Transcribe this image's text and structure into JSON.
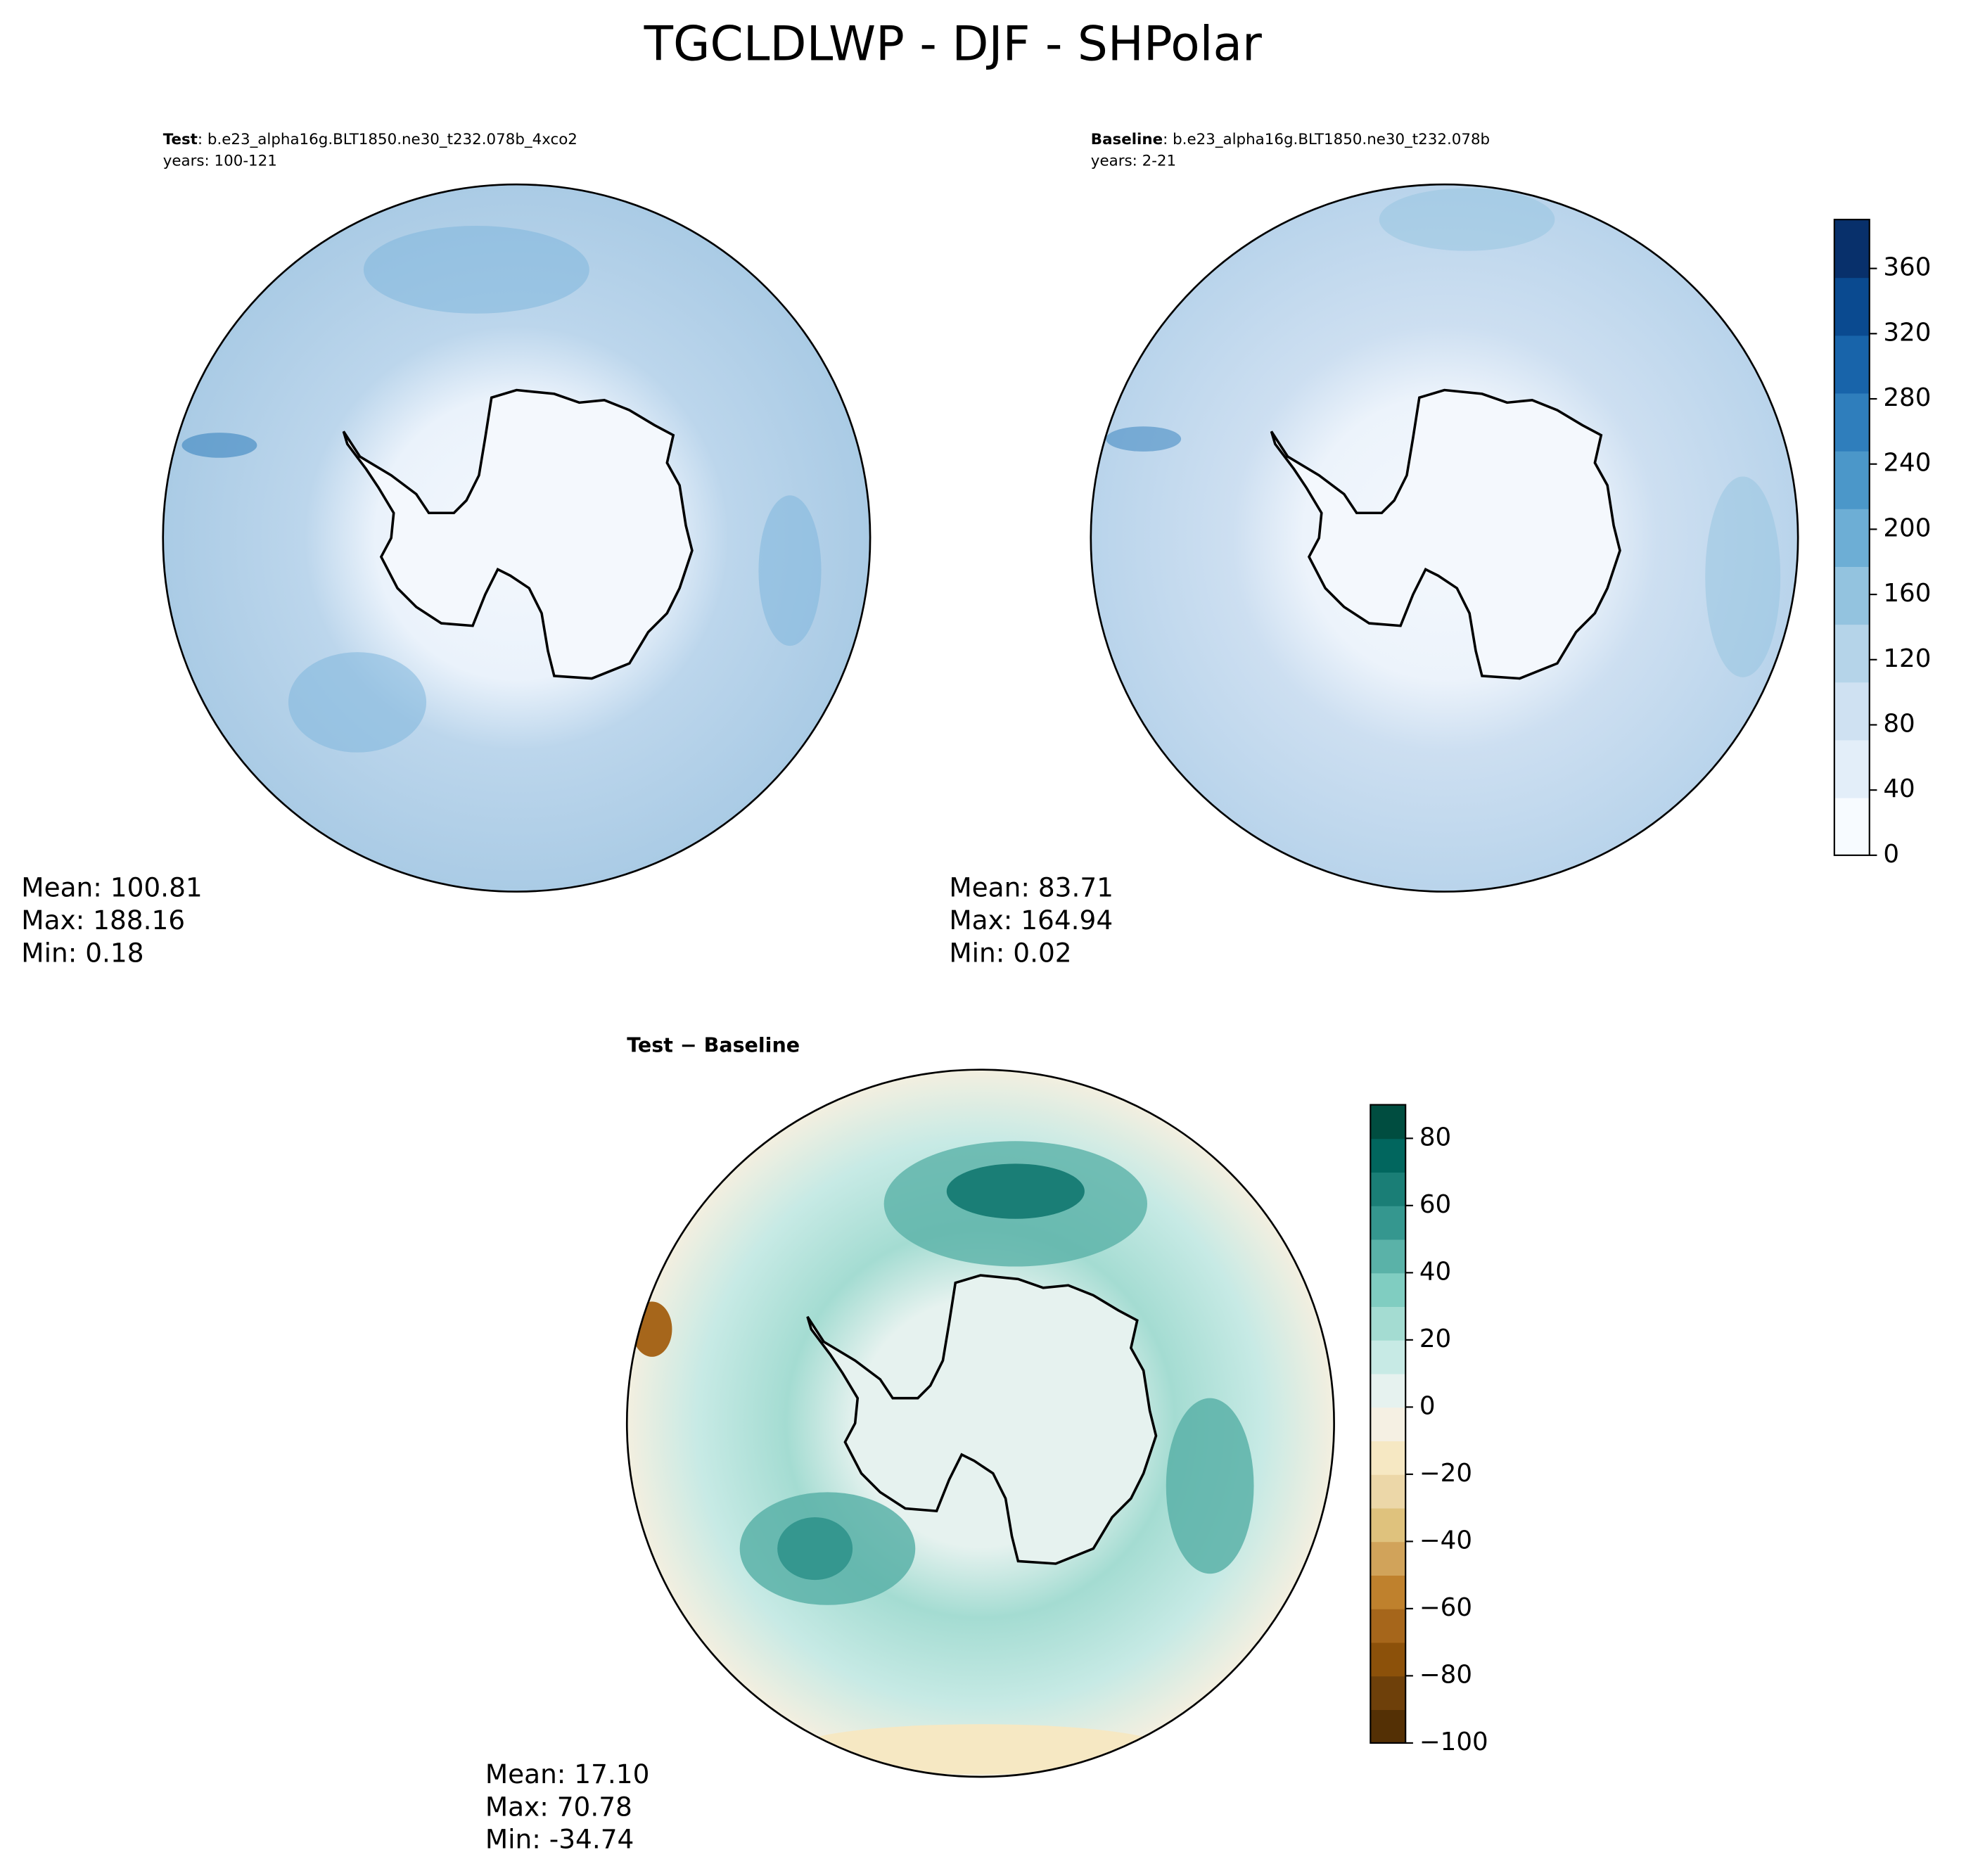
{
  "chart_data": {
    "type": "polar-map",
    "title": "TGCLDLWP - DJF - SHPolar",
    "panels": [
      {
        "label": "Test",
        "case": ": b.e23_alpha16g.BLT1850.ne30_t232.078b_4xco2",
        "years": "years: 100-121",
        "stats": [
          "Mean: 100.81",
          "Max: 188.16",
          "Min:  0.18"
        ]
      },
      {
        "label": "Baseline",
        "case": ": b.e23_alpha16g.BLT1850.ne30_t232.078b",
        "years": "years: 2-21",
        "stats": [
          "Mean: 83.71",
          "Max: 164.94",
          "Min:  0.02"
        ]
      },
      {
        "label": "Test − Baseline",
        "stats": [
          "Mean: 17.10",
          "Max: 70.78",
          "Min: -34.74"
        ]
      }
    ],
    "colorbars": [
      {
        "ylim": [
          0,
          390
        ],
        "yticks": [
          0,
          40,
          80,
          120,
          160,
          200,
          240,
          280,
          320,
          360
        ],
        "colors": [
          "#f7fbff",
          "#e3eef9",
          "#cfe1f2",
          "#b5d4e9",
          "#93c3df",
          "#6daed5",
          "#4b97c9",
          "#2f7ebc",
          "#1864aa",
          "#0a4a90",
          "#08306b"
        ]
      },
      {
        "ylim": [
          -100,
          90
        ],
        "yticks": [
          {
            "value": -100,
            "label": "−100"
          },
          {
            "value": -80,
            "label": "−80"
          },
          {
            "value": -60,
            "label": "−60"
          },
          {
            "value": -40,
            "label": "−40"
          },
          {
            "value": -20,
            "label": "−20"
          },
          0,
          20,
          40,
          60,
          80
        ],
        "colors": [
          "#543005",
          "#6e400a",
          "#8c510a",
          "#a6661b",
          "#bf812d",
          "#d1a35a",
          "#dfc27d",
          "#ecd7a8",
          "#f6e8c3",
          "#f5f0e3",
          "#e6f2ef",
          "#c7eae5",
          "#a4dcd2",
          "#80cdc1",
          "#5ab2a8",
          "#35978f",
          "#1a7e76",
          "#01665e",
          "#004d40"
        ]
      }
    ]
  }
}
